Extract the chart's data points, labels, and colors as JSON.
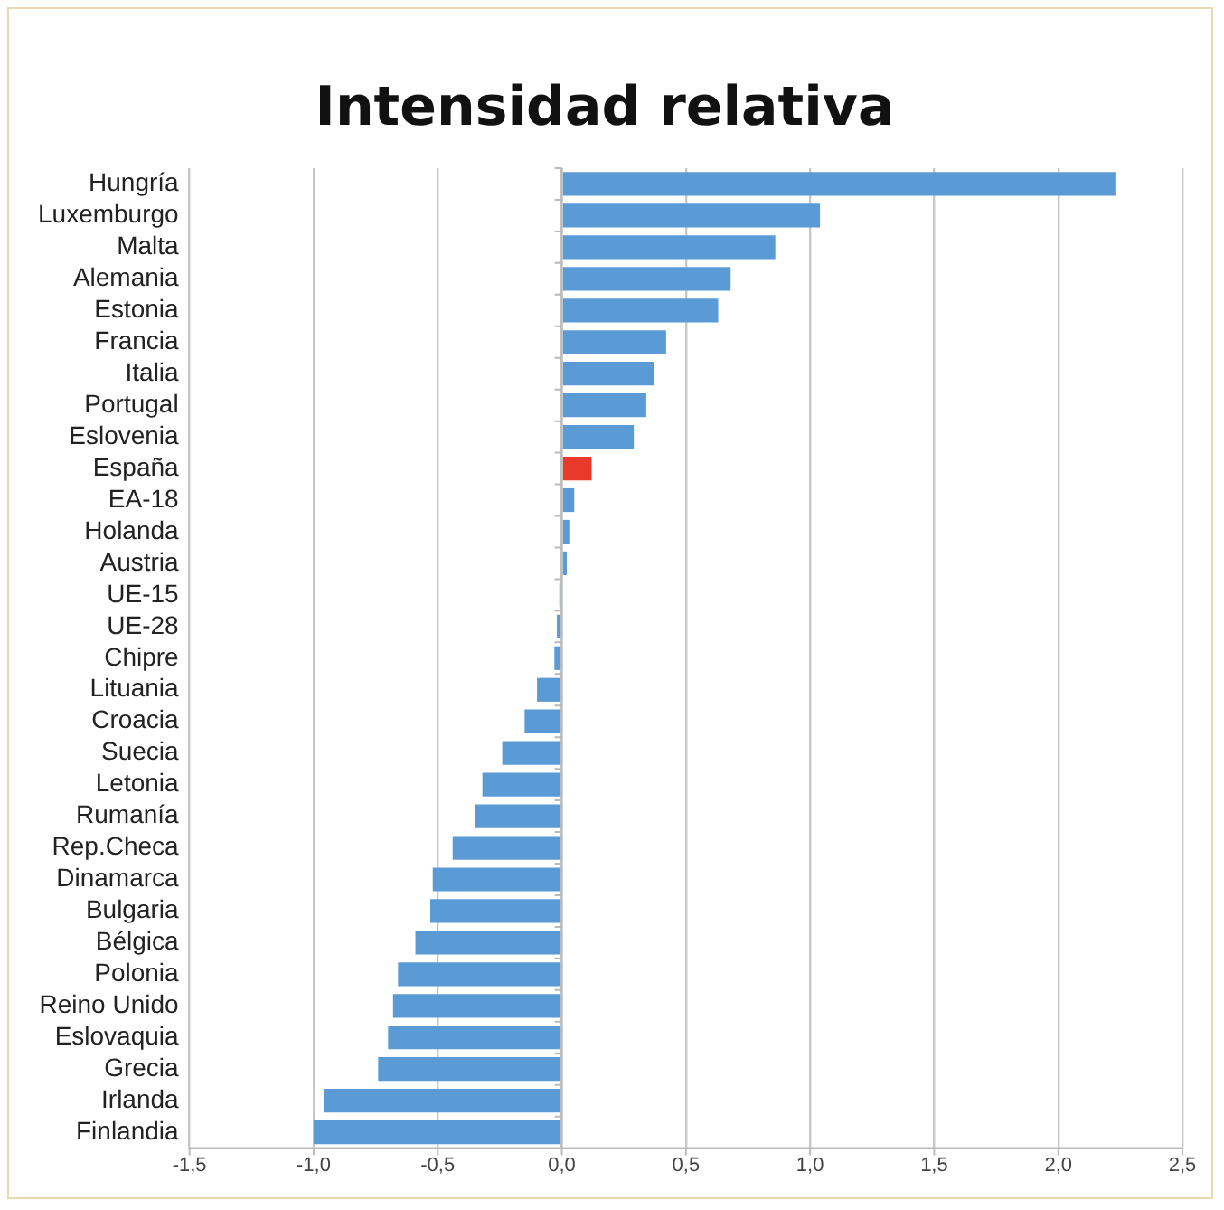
{
  "chart_data": {
    "type": "bar",
    "orientation": "horizontal",
    "title": "Intensidad relativa",
    "categories": [
      "Hungría",
      "Luxemburgo",
      "Malta",
      "Alemania",
      "Estonia",
      "Francia",
      "Italia",
      "Portugal",
      "Eslovenia",
      "España",
      "EA-18",
      "Holanda",
      "Austria",
      "UE-15",
      "UE-28",
      "Chipre",
      "Lituania",
      "Croacia",
      "Suecia",
      "Letonia",
      "Rumanía",
      "Rep.Checa",
      "Dinamarca",
      "Bulgaria",
      "Bélgica",
      "Polonia",
      "Reino Unido",
      "Eslovaquia",
      "Grecia",
      "Irlanda",
      "Finlandia"
    ],
    "values": [
      2.23,
      1.04,
      0.86,
      0.68,
      0.63,
      0.42,
      0.37,
      0.34,
      0.29,
      0.12,
      0.05,
      0.03,
      0.02,
      -0.01,
      -0.02,
      -0.03,
      -0.1,
      -0.15,
      -0.24,
      -0.32,
      -0.35,
      -0.44,
      -0.52,
      -0.53,
      -0.59,
      -0.66,
      -0.68,
      -0.7,
      -0.74,
      -0.96,
      -1.0
    ],
    "colors": [
      "#5b9bd5",
      "#5b9bd5",
      "#5b9bd5",
      "#5b9bd5",
      "#5b9bd5",
      "#5b9bd5",
      "#5b9bd5",
      "#5b9bd5",
      "#5b9bd5",
      "#e8392a",
      "#5b9bd5",
      "#5b9bd5",
      "#5b9bd5",
      "#5b9bd5",
      "#5b9bd5",
      "#5b9bd5",
      "#5b9bd5",
      "#5b9bd5",
      "#5b9bd5",
      "#5b9bd5",
      "#5b9bd5",
      "#5b9bd5",
      "#5b9bd5",
      "#5b9bd5",
      "#5b9bd5",
      "#5b9bd5",
      "#5b9bd5",
      "#5b9bd5",
      "#5b9bd5",
      "#5b9bd5",
      "#5b9bd5"
    ],
    "xlim": [
      -1.5,
      2.5
    ],
    "xticks": [
      {
        "value": -1.5,
        "label": "-1,5"
      },
      {
        "value": -1,
        "label": "-1,0"
      },
      {
        "value": -0.5,
        "label": "-0,5"
      },
      {
        "value": 0,
        "label": "0,0"
      },
      {
        "value": 0.5,
        "label": "0,5"
      },
      {
        "value": 1,
        "label": "1,0"
      },
      {
        "value": 1.5,
        "label": "1,5"
      },
      {
        "value": 2,
        "label": "2,0"
      },
      {
        "value": 2.5,
        "label": "2,5"
      }
    ],
    "grid": "x",
    "legend": false
  }
}
